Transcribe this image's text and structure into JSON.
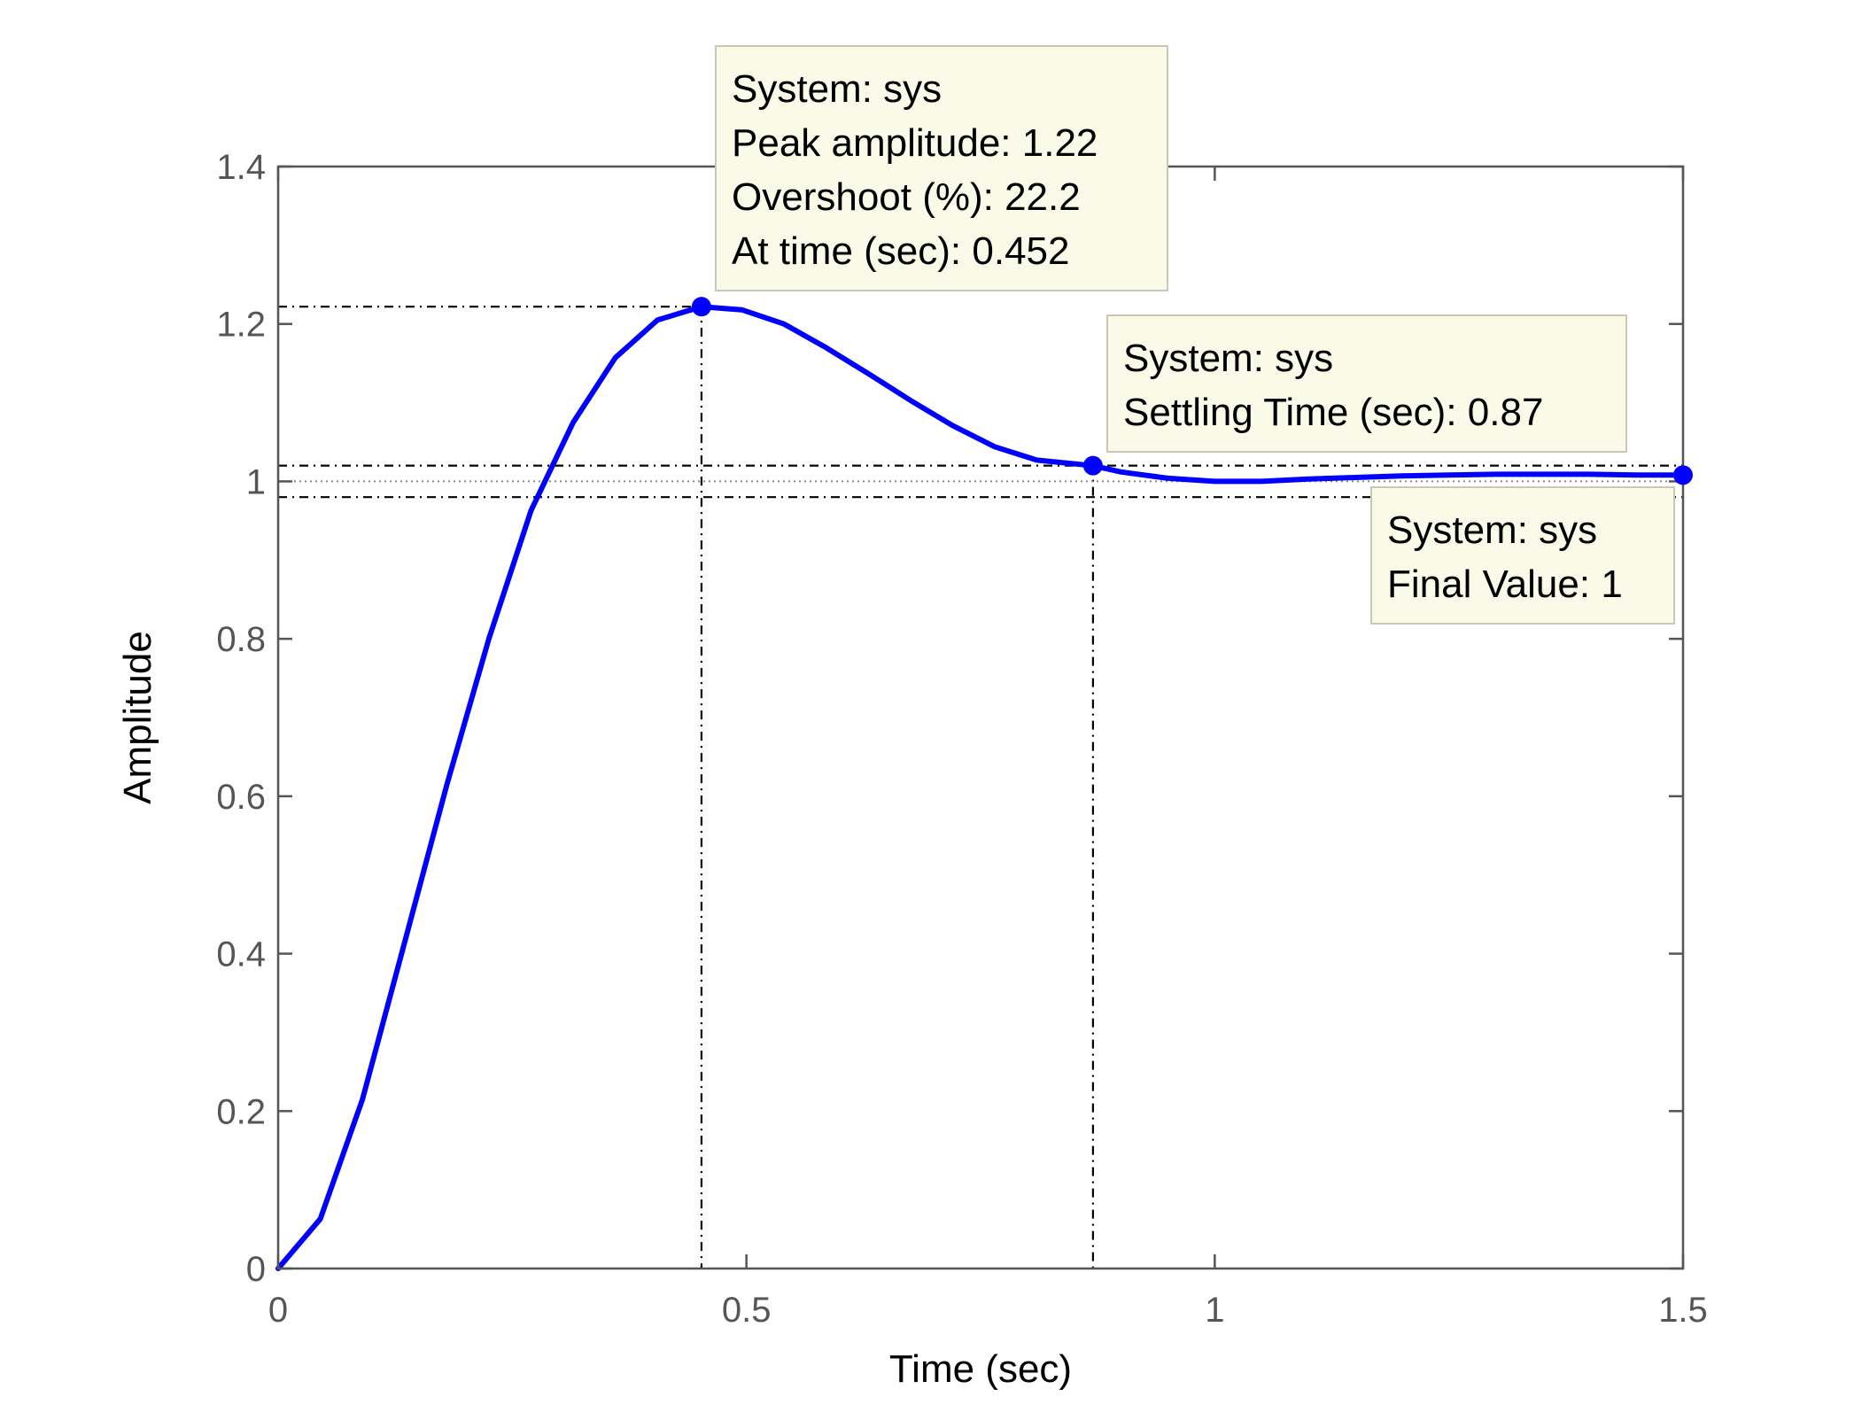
{
  "chart_data": {
    "type": "line",
    "xlabel": "Time (sec)",
    "ylabel": "Amplitude",
    "xlim": [
      0,
      1.5
    ],
    "ylim": [
      0,
      1.4
    ],
    "x_ticks": [
      "0",
      "0.5",
      "1",
      "1.5"
    ],
    "y_ticks": [
      "0",
      "0.2",
      "0.4",
      "0.6",
      "0.8",
      "1",
      "1.2",
      "1.4"
    ],
    "grid": false,
    "series": [
      {
        "color": "#0000ff",
        "x": [
          0,
          0.045,
          0.09,
          0.135,
          0.18,
          0.225,
          0.27,
          0.315,
          0.36,
          0.405,
          0.452,
          0.495,
          0.54,
          0.585,
          0.63,
          0.675,
          0.72,
          0.765,
          0.81,
          0.87,
          0.9,
          0.95,
          1.0,
          1.05,
          1.1,
          1.15,
          1.2,
          1.25,
          1.3,
          1.35,
          1.4,
          1.45,
          1.5
        ],
        "y": [
          0,
          0.063,
          0.215,
          0.414,
          0.614,
          0.8,
          0.963,
          1.075,
          1.157,
          1.205,
          1.222,
          1.218,
          1.2,
          1.17,
          1.137,
          1.103,
          1.071,
          1.044,
          1.027,
          1.02,
          1.012,
          1.004,
          1.0,
          1.0,
          1.003,
          1.005,
          1.007,
          1.008,
          1.009,
          1.009,
          1.009,
          1.008,
          1.008
        ]
      }
    ],
    "settling_band": [
      0.98,
      1.02
    ],
    "markers": [
      {
        "x": 0.452,
        "y": 1.222
      },
      {
        "x": 0.87,
        "y": 1.02
      },
      {
        "x": 1.5,
        "y": 1.008
      }
    ],
    "datatips": [
      {
        "lines": [
          "System: sys",
          "Peak amplitude: 1.22",
          "Overshoot (%): 22.2",
          "At time (sec): 0.452"
        ]
      },
      {
        "lines": [
          "System: sys",
          "Settling Time (sec): 0.87"
        ]
      },
      {
        "lines": [
          "System: sys",
          "Final Value: 1"
        ]
      }
    ]
  },
  "colors": {
    "line": "#0000ff",
    "axes": "#555555",
    "datatip_bg": "#fafae8",
    "datatip_border": "#c8c8b4"
  }
}
